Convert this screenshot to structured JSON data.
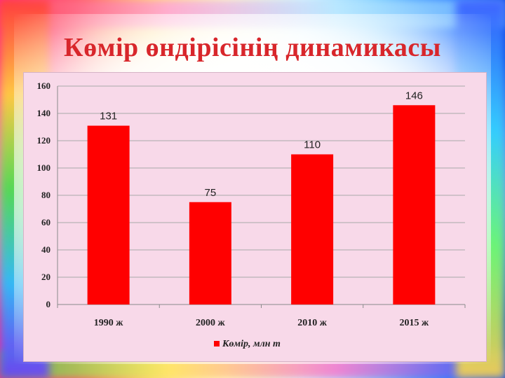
{
  "slide": {
    "title": "Көмір өндірісінің динамикасы"
  },
  "colors": {
    "title": "#d8262b",
    "bar": "#ff0000",
    "panel": "#f8d9e9"
  },
  "chart_data": {
    "type": "bar",
    "categories": [
      "1990 ж",
      "2000 ж",
      "2010 ж",
      "2015 ж"
    ],
    "series": [
      {
        "name": "Көмір, млн т",
        "values": [
          131,
          75,
          110,
          146
        ],
        "color": "#ff0000"
      }
    ],
    "ylim": [
      0,
      160
    ],
    "yticks": [
      0,
      20,
      40,
      60,
      80,
      100,
      120,
      140,
      160
    ],
    "data_labels": true,
    "grid": true,
    "legend": "bottom"
  }
}
